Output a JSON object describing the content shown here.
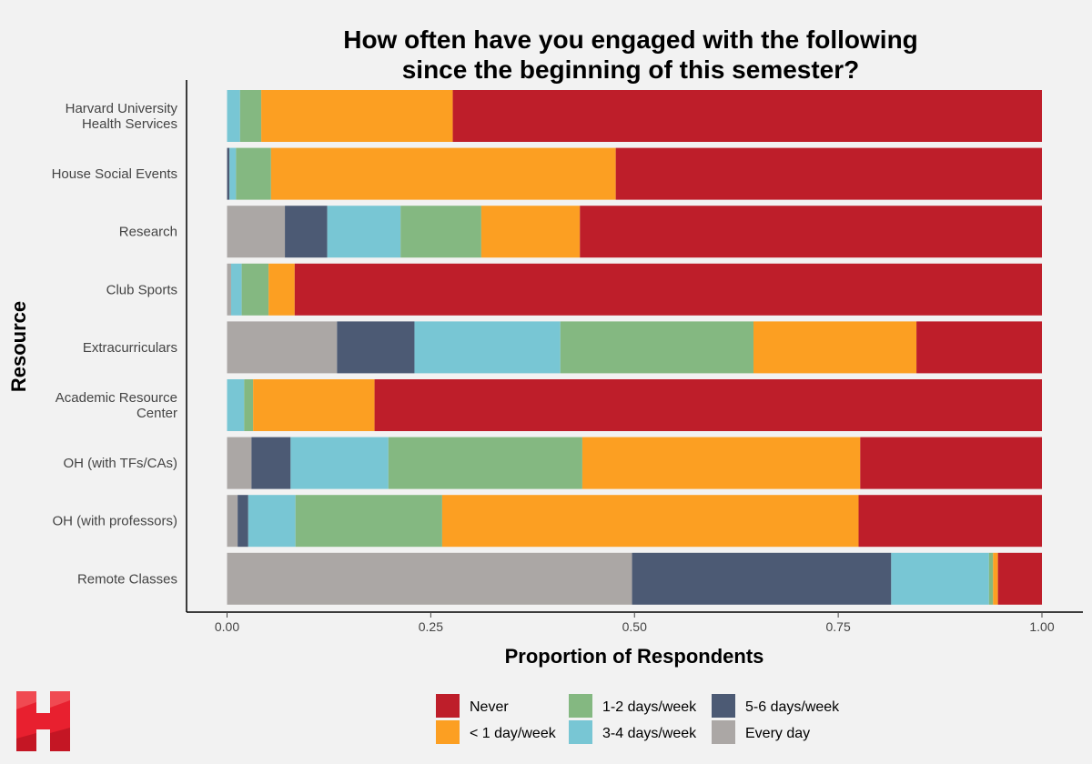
{
  "chart_data": {
    "type": "bar",
    "orientation": "horizontal",
    "stacked": true,
    "title": "How often have you engaged with the following since the beginning of this semester?",
    "title_lines": [
      "How often have you engaged with the following",
      "since the beginning of this semester?"
    ],
    "xlabel": "Proportion of Respondents",
    "ylabel": "Resource",
    "xlim": [
      0,
      1
    ],
    "xticks": [
      "0.00",
      "0.25",
      "0.50",
      "0.75",
      "1.00"
    ],
    "xtick_values": [
      0,
      0.25,
      0.5,
      0.75,
      1.0
    ],
    "categories": [
      [
        "Harvard University",
        "Health Services"
      ],
      [
        "House Social Events"
      ],
      [
        "Research"
      ],
      [
        "Club Sports"
      ],
      [
        "Extracurriculars"
      ],
      [
        "Academic Resource",
        "Center"
      ],
      [
        "OH (with TFs/CAs)"
      ],
      [
        "OH (with professors)"
      ],
      [
        "Remote Classes"
      ]
    ],
    "series": [
      {
        "name": "Every day",
        "color": "#aba7a5",
        "values": [
          0.0,
          0.0,
          0.071,
          0.005,
          0.135,
          0.0,
          0.03,
          0.013,
          0.497
        ]
      },
      {
        "name": "5-6 days/week",
        "color": "#4c5a74",
        "values": [
          0.0,
          0.003,
          0.052,
          0.0,
          0.095,
          0.0,
          0.048,
          0.013,
          0.318
        ]
      },
      {
        "name": "3-4 days/week",
        "color": "#78c6d4",
        "values": [
          0.016,
          0.008,
          0.09,
          0.013,
          0.179,
          0.021,
          0.12,
          0.058,
          0.12
        ]
      },
      {
        "name": "1-2 days/week",
        "color": "#84b881",
        "values": [
          0.026,
          0.043,
          0.099,
          0.033,
          0.237,
          0.011,
          0.238,
          0.18,
          0.005
        ]
      },
      {
        "name": "< 1 day/week",
        "color": "#fc9f22",
        "values": [
          0.235,
          0.423,
          0.121,
          0.032,
          0.2,
          0.149,
          0.341,
          0.511,
          0.006
        ]
      },
      {
        "name": "Never",
        "color": "#be1e2a",
        "values": [
          0.723,
          0.523,
          0.567,
          0.917,
          0.154,
          0.819,
          0.223,
          0.225,
          0.054
        ]
      }
    ],
    "legend": {
      "position": "bottom",
      "columns": [
        [
          "Never",
          "< 1 day/week"
        ],
        [
          "1-2 days/week",
          "3-4 days/week"
        ],
        [
          "5-6 days/week",
          "Every day"
        ]
      ]
    },
    "grid": false
  },
  "logo": {
    "letter": "H",
    "color": "#e8202f"
  }
}
